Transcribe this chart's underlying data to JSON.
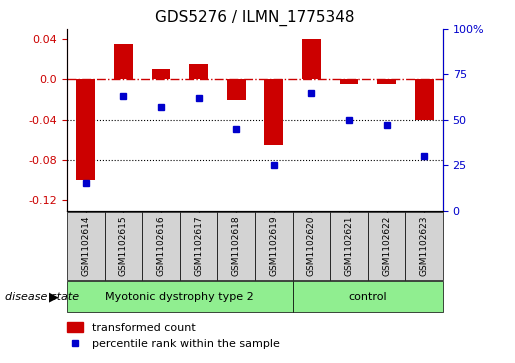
{
  "title": "GDS5276 / ILMN_1775348",
  "samples": [
    "GSM1102614",
    "GSM1102615",
    "GSM1102616",
    "GSM1102617",
    "GSM1102618",
    "GSM1102619",
    "GSM1102620",
    "GSM1102621",
    "GSM1102622",
    "GSM1102623"
  ],
  "red_values": [
    -0.1,
    0.035,
    0.01,
    0.015,
    -0.02,
    -0.065,
    0.04,
    -0.005,
    -0.005,
    -0.04
  ],
  "blue_values": [
    15,
    63,
    57,
    62,
    45,
    25,
    65,
    50,
    47,
    30
  ],
  "ylim_left": [
    -0.13,
    0.05
  ],
  "ylim_right": [
    0,
    100
  ],
  "yticks_left": [
    0.04,
    0.0,
    -0.04,
    -0.08,
    -0.12
  ],
  "yticks_right": [
    100,
    75,
    50,
    25,
    0
  ],
  "ytick_right_labels": [
    "100%",
    "75",
    "50",
    "25",
    "0"
  ],
  "red_color": "#cc0000",
  "blue_color": "#0000cc",
  "hline_y": 0.0,
  "dotted_lines": [
    -0.04,
    -0.08
  ],
  "group1_label": "Myotonic dystrophy type 2",
  "group1_count": 6,
  "group2_label": "control",
  "group2_count": 4,
  "disease_state_label": "disease state",
  "legend_red": "transformed count",
  "legend_blue": "percentile rank within the sample",
  "bar_width": 0.5,
  "group_color": "#90EE90",
  "sample_box_color": "#d3d3d3"
}
